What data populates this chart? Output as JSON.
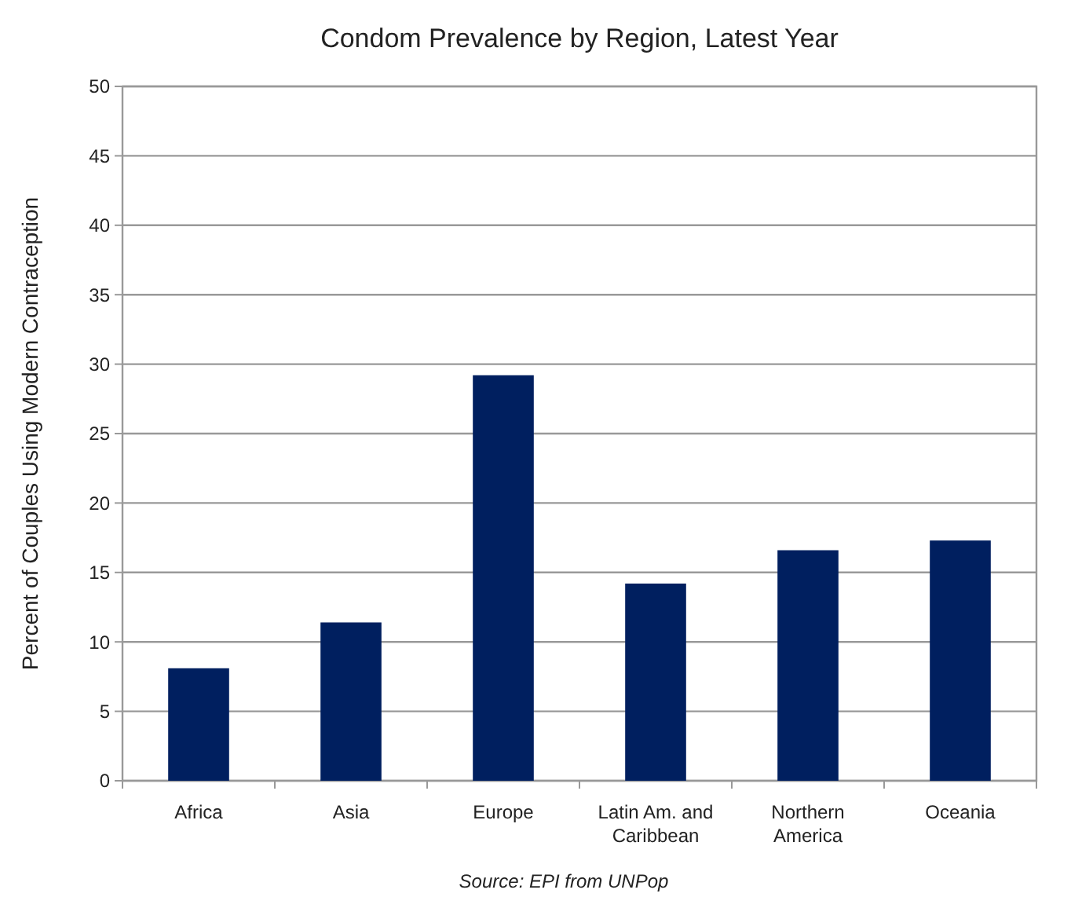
{
  "chart_data": {
    "type": "bar",
    "title": "Condom Prevalence by  Region, Latest Year",
    "ylabel": "Percent of Couples Using Modern Contraception",
    "categories": [
      "Africa",
      "Asia",
      "Europe",
      "Latin Am. and Caribbean",
      "Northern America",
      "Oceania"
    ],
    "values": [
      8.1,
      11.4,
      29.2,
      14.2,
      16.6,
      17.3
    ],
    "color": "#001f5f",
    "ylim": [
      0,
      50
    ],
    "yticks": [
      0,
      5,
      10,
      15,
      20,
      25,
      30,
      35,
      40,
      45,
      50
    ],
    "grid": "y",
    "annotations": [
      "Source: EPI from UNPop"
    ]
  }
}
